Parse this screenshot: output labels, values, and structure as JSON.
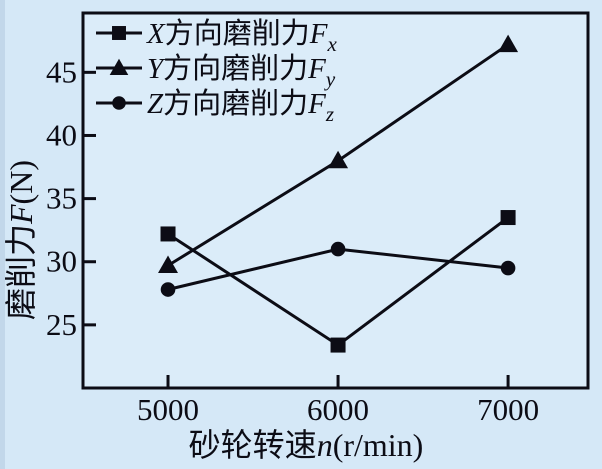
{
  "colors": {
    "page_bg": "#d5e8f7",
    "plot_bg": "#dbecf9",
    "ink": "#0c0c15",
    "left_edge_strip": "#c2d7ea"
  },
  "chart_data": {
    "type": "line",
    "x": [
      5000,
      6000,
      7000
    ],
    "series": [
      {
        "name": "X方向磨削力Fx",
        "legend": {
          "prefix": "X",
          "body": "方向磨削力",
          "var": "F",
          "sub": "x"
        },
        "marker": "square",
        "values": [
          32.2,
          23.4,
          33.5
        ]
      },
      {
        "name": "Y方向磨削力Fy",
        "legend": {
          "prefix": "Y",
          "body": "方向磨削力",
          "var": "F",
          "sub": "y"
        },
        "marker": "triangle-up",
        "values": [
          29.7,
          38.0,
          47.2
        ]
      },
      {
        "name": "Z方向磨削力Fz",
        "legend": {
          "prefix": "Z",
          "body": "方向磨削力",
          "var": "F",
          "sub": "z"
        },
        "marker": "circle",
        "values": [
          27.8,
          31.0,
          29.5
        ]
      }
    ],
    "xlabel": {
      "text": "砂轮转速",
      "var": "n",
      "unit": "(r/min)"
    },
    "ylabel": {
      "text": "磨削力",
      "var": "F",
      "unit": "(N)"
    },
    "xticks": [
      5000,
      6000,
      7000
    ],
    "yticks": [
      25,
      30,
      35,
      40,
      45
    ],
    "xlim": [
      4500,
      7470
    ],
    "ylim": [
      20,
      49.7
    ],
    "grid": false,
    "legend_position": "top-left",
    "line_color": "#0c0c15",
    "marker_color": "#0c0c15"
  }
}
